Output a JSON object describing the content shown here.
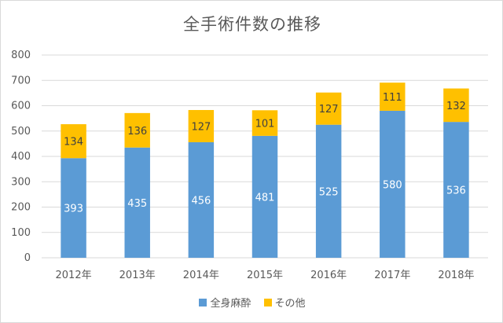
{
  "chart_data": {
    "type": "bar",
    "stacked": true,
    "title": "全手術件数の推移",
    "categories": [
      "2012年",
      "2013年",
      "2014年",
      "2015年",
      "2016年",
      "2017年",
      "2018年"
    ],
    "series": [
      {
        "name": "全身麻酔",
        "color": "#5b9bd5",
        "label_color": "#ffffff",
        "values": [
          393,
          435,
          456,
          481,
          525,
          580,
          536
        ]
      },
      {
        "name": "その他",
        "color": "#ffc000",
        "label_color": "#404040",
        "values": [
          134,
          136,
          127,
          101,
          127,
          111,
          132
        ]
      }
    ],
    "ylim": [
      0,
      800
    ],
    "yticks": [
      0,
      100,
      200,
      300,
      400,
      500,
      600,
      700,
      800
    ],
    "grid": true,
    "legend": "bottom"
  }
}
